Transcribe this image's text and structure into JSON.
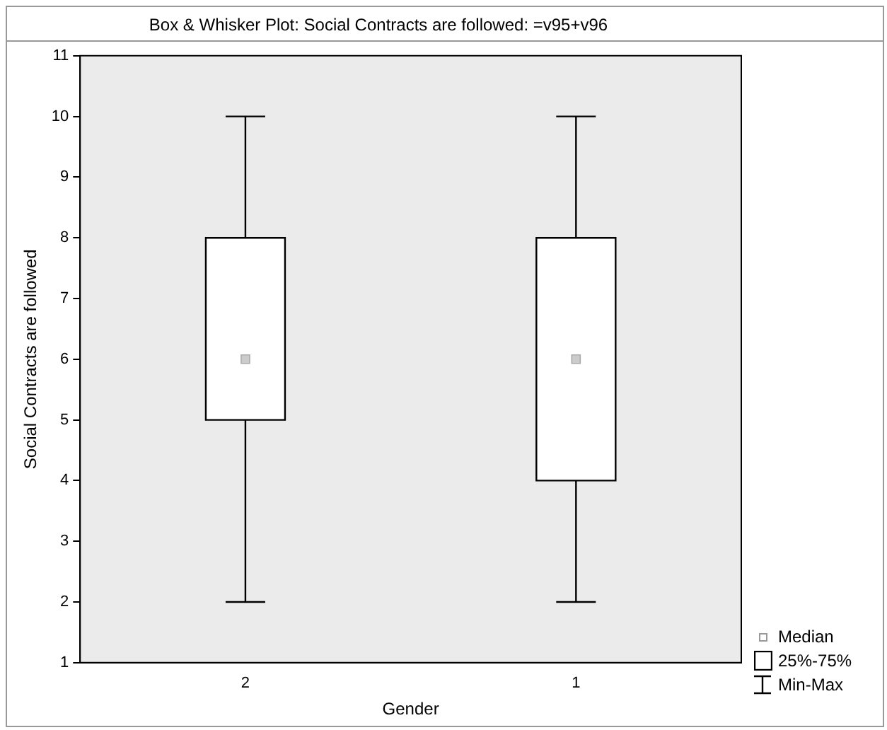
{
  "chart_data": {
    "type": "box",
    "title": "Box & Whisker Plot: Social Contracts are followed: =v95+v96",
    "xlabel": "Gender",
    "ylabel": "Social Contracts are followed",
    "categories": [
      "2",
      "1"
    ],
    "boxes": [
      {
        "low": 2,
        "q1": 5,
        "median": 6,
        "q3": 8,
        "high": 10
      },
      {
        "low": 2,
        "q1": 4,
        "median": 6,
        "q3": 8,
        "high": 10
      }
    ],
    "ylim": [
      1,
      11
    ],
    "yticks": [
      1,
      2,
      3,
      4,
      5,
      6,
      7,
      8,
      9,
      10,
      11
    ],
    "grid": false,
    "annotations": [
      "Median",
      "25%-75%",
      "Min-Max"
    ]
  }
}
